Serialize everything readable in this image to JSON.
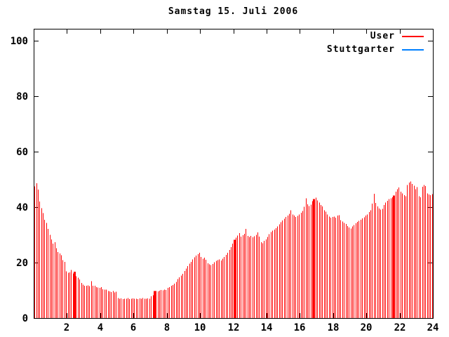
{
  "title": "Samstag 15. Juli 2006",
  "legend": {
    "position": "top-right-inside",
    "items": [
      {
        "label": "User",
        "color": "#ff0000"
      },
      {
        "label": "Stuttgarter",
        "color": "#0080ff"
      }
    ]
  },
  "colors": {
    "background": "#ffffff",
    "axis": "#000000",
    "bar": "#ff0000"
  },
  "chart_data": {
    "type": "bar",
    "style": "impulses",
    "title": "Samstag 15. Juli 2006",
    "xlabel": "",
    "ylabel": "",
    "x_unit": "hour-of-day",
    "xlim": [
      0,
      24
    ],
    "ylim": [
      0,
      104
    ],
    "x_ticks": [
      2,
      4,
      6,
      8,
      10,
      12,
      14,
      16,
      18,
      20,
      22,
      24
    ],
    "y_ticks": [
      0,
      20,
      40,
      60,
      80,
      100
    ],
    "grid": false,
    "legend_position": "top-right-inside",
    "series": [
      {
        "name": "User",
        "color": "#ff0000",
        "x_start": 0.0,
        "x_step": 0.1,
        "highlight_indices": [
          24,
          72,
          120,
          168,
          216
        ],
        "values": [
          47.5,
          48.6,
          46.3,
          42.0,
          39.6,
          37.9,
          35.4,
          34.3,
          32.2,
          30.0,
          28.4,
          26.8,
          27.4,
          25.2,
          23.8,
          23.3,
          22.7,
          20.9,
          20.2,
          16.8,
          16.3,
          16.5,
          17.4,
          16.1,
          16.7,
          15.1,
          14.6,
          13.9,
          12.6,
          12.0,
          11.7,
          11.6,
          11.8,
          11.5,
          13.3,
          11.7,
          11.6,
          11.2,
          11.0,
          10.9,
          11.1,
          10.4,
          10.2,
          10.3,
          9.8,
          9.6,
          9.4,
          9.7,
          9.3,
          9.5,
          7.2,
          6.9,
          7.1,
          6.8,
          7.0,
          6.9,
          7.2,
          6.8,
          7.0,
          7.1,
          6.9,
          7.0,
          6.8,
          7.1,
          6.9,
          7.2,
          7.0,
          6.9,
          7.1,
          7.0,
          7.9,
          8.2,
          9.7,
          9.8,
          9.6,
          9.9,
          10.1,
          10.0,
          10.3,
          10.1,
          10.9,
          11.2,
          11.6,
          11.9,
          12.4,
          13.0,
          14.0,
          14.7,
          15.3,
          15.9,
          17.0,
          17.8,
          18.7,
          19.6,
          20.3,
          21.2,
          21.9,
          22.5,
          23.0,
          23.5,
          22.0,
          21.4,
          21.8,
          21.0,
          19.8,
          19.4,
          19.1,
          19.5,
          20.1,
          20.6,
          20.9,
          21.2,
          20.8,
          21.4,
          22.0,
          22.8,
          23.6,
          24.5,
          25.6,
          26.8,
          28.2,
          29.0,
          29.8,
          30.6,
          29.4,
          29.9,
          30.4,
          32.1,
          29.6,
          29.2,
          29.6,
          29.1,
          29.5,
          30.0,
          30.9,
          29.4,
          27.3,
          27.0,
          27.8,
          28.4,
          29.2,
          30.2,
          31.0,
          31.5,
          31.9,
          32.4,
          33.0,
          33.8,
          34.5,
          35.2,
          35.8,
          36.5,
          36.9,
          37.6,
          38.8,
          37.4,
          36.9,
          36.4,
          36.8,
          37.3,
          38.0,
          38.6,
          40.1,
          43.2,
          41.0,
          40.4,
          40.9,
          42.2,
          42.9,
          43.4,
          42.4,
          41.7,
          40.7,
          40.2,
          38.9,
          38.3,
          37.4,
          36.6,
          36.2,
          36.4,
          36.6,
          36.2,
          36.9,
          37.1,
          35.3,
          34.8,
          34.3,
          33.9,
          33.2,
          32.7,
          32.3,
          33.0,
          33.6,
          34.2,
          34.7,
          35.1,
          35.4,
          35.9,
          36.3,
          36.9,
          37.4,
          38.2,
          38.9,
          41.3,
          44.8,
          41.5,
          40.2,
          39.5,
          39.1,
          39.4,
          40.8,
          41.6,
          42.3,
          42.9,
          43.2,
          43.6,
          44.2,
          45.6,
          46.4,
          47.1,
          45.6,
          45.0,
          44.3,
          43.9,
          48.0,
          48.8,
          49.2,
          48.4,
          47.7,
          46.5,
          47.2,
          43.9,
          43.5,
          47.4,
          48.0,
          47.6,
          44.9,
          44.5,
          44.3,
          44.7
        ]
      },
      {
        "name": "Stuttgarter",
        "color": "#0080ff",
        "values": []
      }
    ]
  }
}
